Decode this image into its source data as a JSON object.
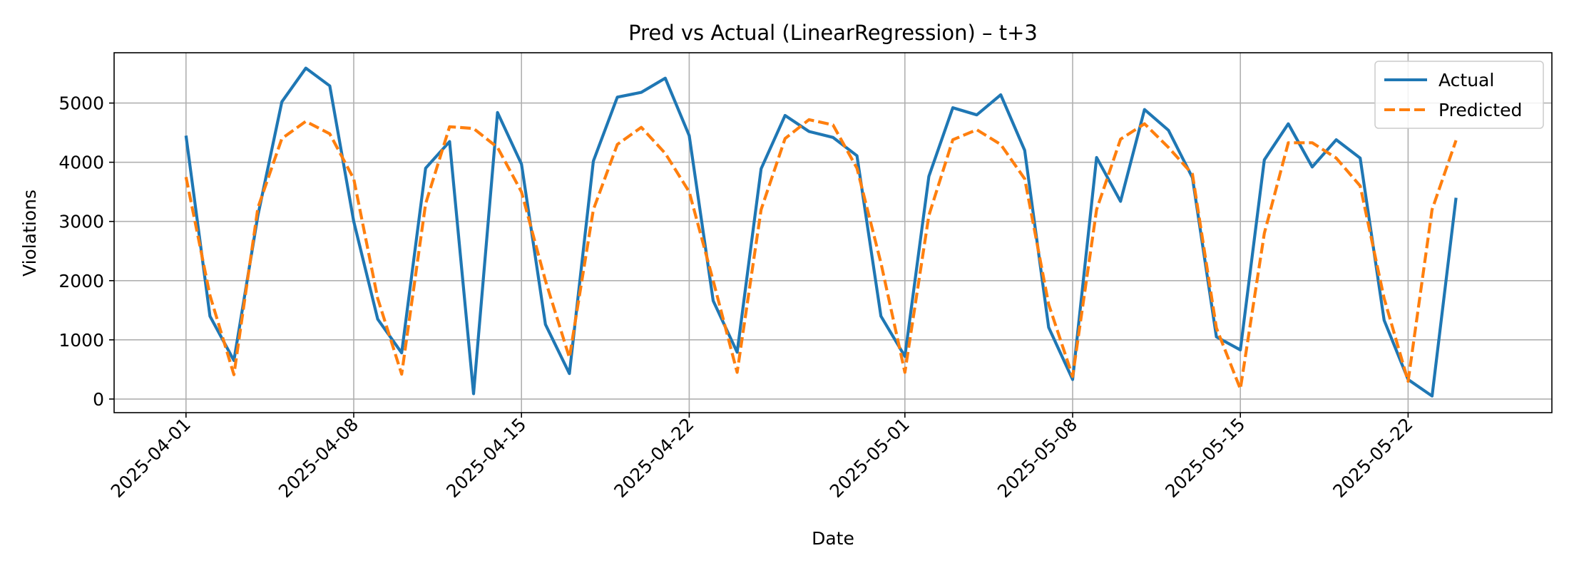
{
  "chart_data": {
    "type": "line",
    "title": "Pred vs Actual (LinearRegression) – t+3",
    "xlabel": "Date",
    "ylabel": "Violations",
    "x_start": "2025-04-01",
    "x_end": "2025-05-24",
    "xlim": [
      "2025-03-29",
      "2025-05-28"
    ],
    "ylim": [
      -230,
      5850
    ],
    "xticks": [
      "2025-04-01",
      "2025-04-08",
      "2025-04-15",
      "2025-04-22",
      "2025-05-01",
      "2025-05-08",
      "2025-05-15",
      "2025-05-22"
    ],
    "yticks": [
      0,
      1000,
      2000,
      3000,
      4000,
      5000
    ],
    "grid": true,
    "legend": "top-right",
    "series": [
      {
        "name": "Actual",
        "color": "#1f77b4",
        "style": "solid",
        "values": [
          4450,
          1400,
          650,
          3100,
          5020,
          5590,
          5290,
          3000,
          1350,
          780,
          3900,
          4350,
          90,
          4840,
          3970,
          1260,
          430,
          4020,
          5100,
          5180,
          5420,
          4450,
          1660,
          790,
          3890,
          4790,
          4520,
          4420,
          4110,
          1400,
          720,
          3760,
          4920,
          4800,
          5140,
          4200,
          1210,
          330,
          4080,
          3340,
          4890,
          4540,
          3740,
          1050,
          830,
          4040,
          4650,
          3920,
          4380,
          4070,
          1330,
          330,
          50,
          3400
        ]
      },
      {
        "name": "Predicted",
        "color": "#ff7f0e",
        "style": "dashed",
        "values": [
          3750,
          1750,
          410,
          3230,
          4400,
          4690,
          4480,
          3720,
          1700,
          420,
          3300,
          4600,
          4570,
          4250,
          3500,
          2000,
          700,
          3200,
          4300,
          4590,
          4150,
          3500,
          2000,
          450,
          3200,
          4400,
          4720,
          4630,
          3900,
          2300,
          450,
          3100,
          4380,
          4550,
          4300,
          3720,
          1600,
          380,
          3200,
          4390,
          4650,
          4250,
          3800,
          1200,
          170,
          2800,
          4330,
          4330,
          4070,
          3600,
          1700,
          300,
          3200,
          4370
        ]
      }
    ]
  }
}
